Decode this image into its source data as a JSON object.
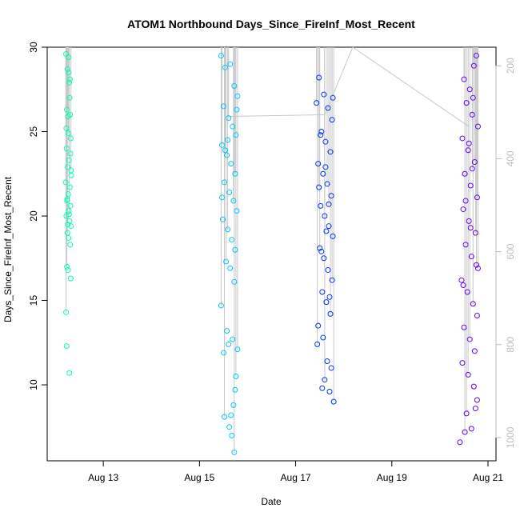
{
  "chart_data": {
    "type": "scatter",
    "title": "ATOM1 Northbound Days_Since_FireInf_Most_Recent",
    "xlabel": "Date",
    "ylabel": "Days_Since_FireInf_Most_Recent",
    "x_ticks": [
      "Aug 13",
      "Aug 15",
      "Aug 17",
      "Aug 19",
      "Aug 21"
    ],
    "xlim": [
      "2023-08-11T20:00",
      "2023-08-21T04:00"
    ],
    "ylim": [
      5.5,
      30
    ],
    "y_ticks": [
      10,
      15,
      20,
      25,
      30
    ],
    "y2_ticks": [
      200,
      400,
      600,
      800,
      1000
    ],
    "y2lim": [
      1050,
      160
    ],
    "grid": false,
    "series": [
      {
        "color": "#00FFB3",
        "x_range": [
          "2023-08-12T05:00",
          "2023-08-12T08:00"
        ],
        "points": [
          [
            0.03,
            29.6
          ],
          [
            0.08,
            28.7
          ],
          [
            0.12,
            28.5
          ],
          [
            0.15,
            27.9
          ],
          [
            0.18,
            26.0
          ],
          [
            0.06,
            26.3
          ],
          [
            0.1,
            25.9
          ],
          [
            0.2,
            24.6
          ],
          [
            0.05,
            24.0
          ],
          [
            0.14,
            23.3
          ],
          [
            0.09,
            22.9
          ],
          [
            0.22,
            22.4
          ],
          [
            0.02,
            22.0
          ],
          [
            0.17,
            21.7
          ],
          [
            0.11,
            21.3
          ],
          [
            0.07,
            20.9
          ],
          [
            0.19,
            20.6
          ],
          [
            0.13,
            20.3
          ],
          [
            0.04,
            20.0
          ],
          [
            0.16,
            19.7
          ],
          [
            0.21,
            19.4
          ],
          [
            0.08,
            19.0
          ],
          [
            0.12,
            18.7
          ],
          [
            0.18,
            18.3
          ],
          [
            0.06,
            17.0
          ],
          [
            0.1,
            16.8
          ],
          [
            0.2,
            16.3
          ],
          [
            0.03,
            14.3
          ],
          [
            0.05,
            12.3
          ],
          [
            0.15,
            10.7
          ],
          [
            0.11,
            24.9
          ],
          [
            0.19,
            23.7
          ],
          [
            0.07,
            21.0
          ],
          [
            0.14,
            20.1
          ],
          [
            0.09,
            19.5
          ],
          [
            0.17,
            28.1
          ],
          [
            0.12,
            29.4
          ],
          [
            0.16,
            27.0
          ],
          [
            0.04,
            25.2
          ],
          [
            0.21,
            22.7
          ]
        ]
      },
      {
        "color": "#00C8FF",
        "x_range": [
          "2023-08-15T10:00",
          "2023-08-15T19:00"
        ],
        "points": [
          [
            0.02,
            29.5
          ],
          [
            0.07,
            28.8
          ],
          [
            0.13,
            29.0
          ],
          [
            0.18,
            27.7
          ],
          [
            0.22,
            27.1
          ],
          [
            0.05,
            26.5
          ],
          [
            0.11,
            25.8
          ],
          [
            0.16,
            25.3
          ],
          [
            0.2,
            24.8
          ],
          [
            0.03,
            24.2
          ],
          [
            0.09,
            23.6
          ],
          [
            0.14,
            23.1
          ],
          [
            0.19,
            22.5
          ],
          [
            0.06,
            22.0
          ],
          [
            0.12,
            21.4
          ],
          [
            0.17,
            20.9
          ],
          [
            0.21,
            20.3
          ],
          [
            0.04,
            19.8
          ],
          [
            0.1,
            19.2
          ],
          [
            0.15,
            18.6
          ],
          [
            0.19,
            18.0
          ],
          [
            0.08,
            17.3
          ],
          [
            0.13,
            16.9
          ],
          [
            0.18,
            16.1
          ],
          [
            0.02,
            14.7
          ],
          [
            0.09,
            13.2
          ],
          [
            0.16,
            12.7
          ],
          [
            0.22,
            12.1
          ],
          [
            0.05,
            11.9
          ],
          [
            0.11,
            12.4
          ],
          [
            0.2,
            10.5
          ],
          [
            0.19,
            9.7
          ],
          [
            0.17,
            8.8
          ],
          [
            0.06,
            8.1
          ],
          [
            0.12,
            7.5
          ],
          [
            0.15,
            7.0
          ],
          [
            0.18,
            6.0
          ],
          [
            0.14,
            8.2
          ],
          [
            0.1,
            24.5
          ],
          [
            0.07,
            23.9
          ],
          [
            0.03,
            21.1
          ],
          [
            0.21,
            26.3
          ]
        ]
      },
      {
        "color": "#0032FF",
        "x_range": [
          "2023-08-17T10:00",
          "2023-08-17T19:00"
        ],
        "points": [
          [
            0.04,
            28.2
          ],
          [
            0.1,
            27.2
          ],
          [
            0.15,
            26.4
          ],
          [
            0.2,
            25.7
          ],
          [
            0.07,
            25.0
          ],
          [
            0.12,
            24.4
          ],
          [
            0.18,
            23.8
          ],
          [
            0.03,
            23.1
          ],
          [
            0.09,
            22.5
          ],
          [
            0.14,
            21.9
          ],
          [
            0.19,
            21.2
          ],
          [
            0.06,
            20.6
          ],
          [
            0.11,
            20.0
          ],
          [
            0.16,
            19.4
          ],
          [
            0.21,
            18.8
          ],
          [
            0.05,
            18.1
          ],
          [
            0.1,
            17.5
          ],
          [
            0.15,
            16.8
          ],
          [
            0.2,
            16.2
          ],
          [
            0.08,
            15.5
          ],
          [
            0.13,
            14.9
          ],
          [
            0.18,
            14.2
          ],
          [
            0.03,
            13.5
          ],
          [
            0.09,
            12.8
          ],
          [
            0.02,
            12.4
          ],
          [
            0.14,
            11.4
          ],
          [
            0.19,
            11.0
          ],
          [
            0.11,
            10.3
          ],
          [
            0.08,
            9.8
          ],
          [
            0.17,
            9.6
          ],
          [
            0.22,
            9.0
          ],
          [
            0.12,
            22.9
          ],
          [
            0.06,
            24.8
          ],
          [
            0.16,
            20.7
          ],
          [
            0.13,
            19.1
          ],
          [
            0.07,
            17.9
          ],
          [
            0.01,
            26.7
          ],
          [
            0.21,
            27.0
          ],
          [
            0.17,
            15.2
          ],
          [
            0.04,
            21.7
          ]
        ]
      },
      {
        "color": "#6400FF",
        "x_range": [
          "2023-08-20T10:00",
          "2023-08-20T19:00"
        ],
        "points": [
          [
            0.05,
            28.1
          ],
          [
            0.12,
            27.5
          ],
          [
            0.2,
            29.5
          ],
          [
            0.17,
            28.9
          ],
          [
            0.08,
            26.7
          ],
          [
            0.15,
            26.0
          ],
          [
            0.22,
            25.3
          ],
          [
            0.03,
            24.6
          ],
          [
            0.1,
            23.9
          ],
          [
            0.18,
            23.2
          ],
          [
            0.06,
            22.5
          ],
          [
            0.13,
            21.8
          ],
          [
            0.21,
            21.1
          ],
          [
            0.04,
            20.4
          ],
          [
            0.11,
            19.7
          ],
          [
            0.19,
            19.0
          ],
          [
            0.07,
            18.3
          ],
          [
            0.14,
            17.6
          ],
          [
            0.22,
            16.9
          ],
          [
            0.02,
            16.2
          ],
          [
            0.09,
            15.5
          ],
          [
            0.16,
            14.8
          ],
          [
            0.21,
            14.1
          ],
          [
            0.05,
            13.4
          ],
          [
            0.12,
            12.7
          ],
          [
            0.18,
            12.0
          ],
          [
            0.03,
            11.3
          ],
          [
            0.1,
            10.6
          ],
          [
            0.17,
            9.9
          ],
          [
            0.21,
            9.1
          ],
          [
            0.08,
            8.3
          ],
          [
            0.14,
            7.4
          ],
          [
            0.0,
            6.6
          ],
          [
            0.06,
            7.2
          ],
          [
            0.19,
            8.6
          ],
          [
            0.11,
            24.3
          ],
          [
            0.15,
            22.8
          ],
          [
            0.07,
            20.9
          ],
          [
            0.13,
            19.3
          ],
          [
            0.2,
            17.1
          ],
          [
            0.04,
            15.9
          ],
          [
            0.16,
            27.0
          ]
        ]
      }
    ],
    "trace_line_color": "#c8c8c8"
  }
}
